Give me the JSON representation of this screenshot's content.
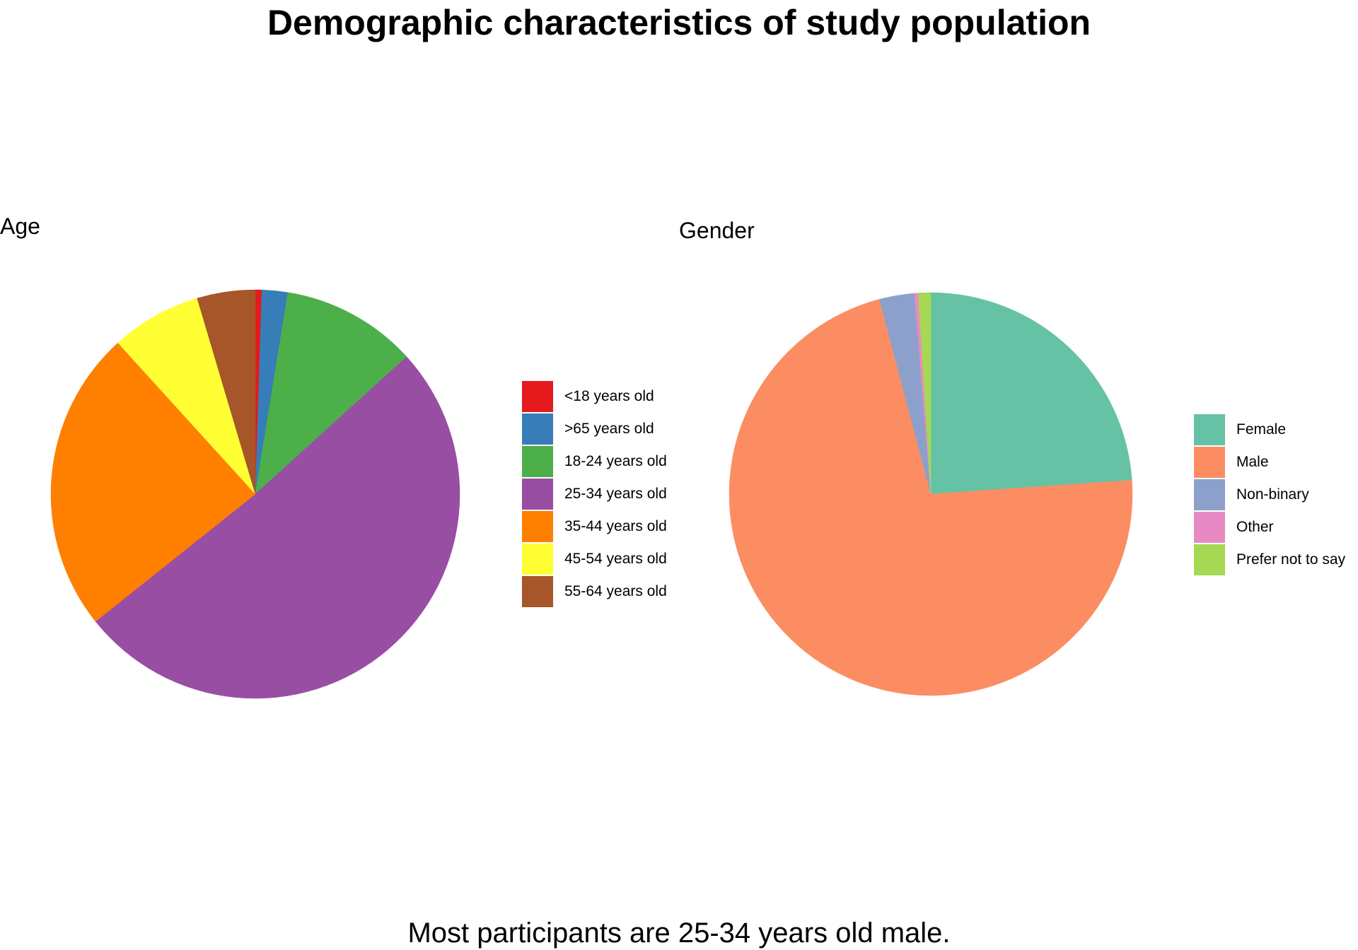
{
  "title": "Demographic characteristics of study population",
  "caption": "Most participants are 25-34 years old male.",
  "chart_data": [
    {
      "type": "pie",
      "title": "Age",
      "categories": [
        "<18 years old",
        ">65 years old",
        "18-24 years old",
        "25-34 years old",
        "35-44 years old",
        "45-54 years old",
        "55-64 years old"
      ],
      "values": [
        0.5,
        2.0,
        10.5,
        50.0,
        23.5,
        7.0,
        4.5
      ],
      "colors": [
        "#E41A1C",
        "#377EB8",
        "#4DAF4A",
        "#984EA3",
        "#FF7F00",
        "#FFFF33",
        "#A65628"
      ],
      "legend": "right"
    },
    {
      "type": "pie",
      "title": "Gender",
      "categories": [
        "Female",
        "Male",
        "Non-binary",
        "Other",
        "Prefer not to say"
      ],
      "values": [
        23.9,
        72.0,
        2.8,
        0.3,
        1.0
      ],
      "colors": [
        "#66C2A5",
        "#FC8D62",
        "#8DA0CB",
        "#E78AC3",
        "#A6D854"
      ],
      "legend": "right"
    }
  ]
}
